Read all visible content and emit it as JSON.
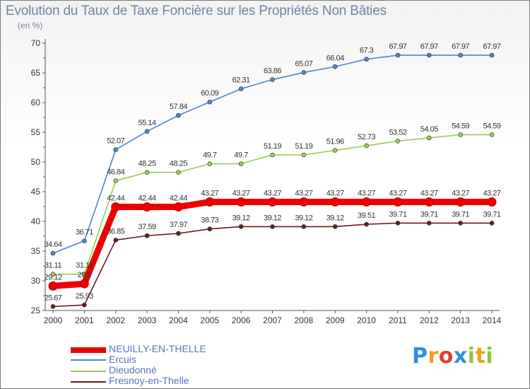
{
  "chart_data": {
    "type": "line",
    "title": "Evolution du Taux de Taxe Foncière sur les Propriétés Non Bâties",
    "ylabel": "(en %)",
    "xlabel": "",
    "x": [
      2000,
      2001,
      2002,
      2003,
      2004,
      2005,
      2006,
      2007,
      2008,
      2009,
      2010,
      2011,
      2012,
      2013,
      2014
    ],
    "ylim": [
      25,
      70
    ],
    "yticks": [
      25,
      30,
      35,
      40,
      45,
      50,
      55,
      60,
      65,
      70
    ],
    "grid": false,
    "legend_position": "bottom-left",
    "series": [
      {
        "name": "Fresnoy-en-Thelle",
        "color": "#6b1a1a",
        "values": [
          25.67,
          25.93,
          36.85,
          37.59,
          37.97,
          38.73,
          39.12,
          39.12,
          39.12,
          39.12,
          39.51,
          39.71,
          39.71,
          39.71,
          39.71
        ],
        "labels": [
          "25.67",
          "25.93",
          "36.85",
          "37.59",
          "37.97",
          "38.73",
          "39.12",
          "39.12",
          "39.12",
          "39.12",
          "39.51",
          "39.71",
          "39.71",
          "39.71",
          "39.71"
        ]
      },
      {
        "name": "Dieudonné",
        "color": "#99cc55",
        "values": [
          31.11,
          31.11,
          46.84,
          48.25,
          48.25,
          49.7,
          49.7,
          51.19,
          51.19,
          51.96,
          52.73,
          53.52,
          54.05,
          54.59,
          54.59
        ],
        "labels": [
          "31.11",
          "31.11",
          "46.84",
          "48.25",
          "48.25",
          "49.7",
          "49.7",
          "51.19",
          "51.19",
          "51.96",
          "52.73",
          "53.52",
          "54.05",
          "54.59",
          "54.59"
        ]
      },
      {
        "name": "Ercuis",
        "color": "#4a88c8",
        "values": [
          34.64,
          36.71,
          52.07,
          55.14,
          57.84,
          60.09,
          62.31,
          63.86,
          65.07,
          66.04,
          67.3,
          67.97,
          67.97,
          67.97,
          67.97
        ],
        "labels": [
          "34.64",
          "36.71",
          "52.07",
          "55.14",
          "57.84",
          "60.09",
          "62.31",
          "63.86",
          "65.07",
          "66.04",
          "67.3",
          "67.97",
          "67.97",
          "67.97",
          "67.97"
        ]
      },
      {
        "name": "NEUILLY-EN-THELLE",
        "color": "#ee0000",
        "values": [
          29.12,
          29.5,
          42.44,
          42.44,
          42.44,
          43.27,
          43.27,
          43.27,
          43.27,
          43.27,
          43.27,
          43.27,
          43.27,
          43.27,
          43.27
        ],
        "labels": [
          "29.12",
          "29.5",
          "42.44",
          "42.44",
          "42.44",
          "43.27",
          "43.27",
          "43.27",
          "43.27",
          "43.27",
          "43.27",
          "43.27",
          "43.27",
          "43.27",
          "43.27"
        ]
      }
    ]
  },
  "legend": [
    {
      "label": "NEUILLY-EN-THELLE",
      "color": "#ee0000"
    },
    {
      "label": "Ercuis",
      "color": "#4a88c8"
    },
    {
      "label": "Dieudonné",
      "color": "#99cc55"
    },
    {
      "label": "Fresnoy-en-Thelle",
      "color": "#6b1a1a"
    }
  ],
  "brand": {
    "letters": [
      "P",
      "r",
      "o",
      "x",
      "i",
      "t",
      "i"
    ],
    "colors": [
      "#2f8fd8",
      "#f0a020",
      "#e04030",
      "#2f8fd8",
      "#8cc43c",
      "#f0a020",
      "#8cc43c"
    ]
  }
}
